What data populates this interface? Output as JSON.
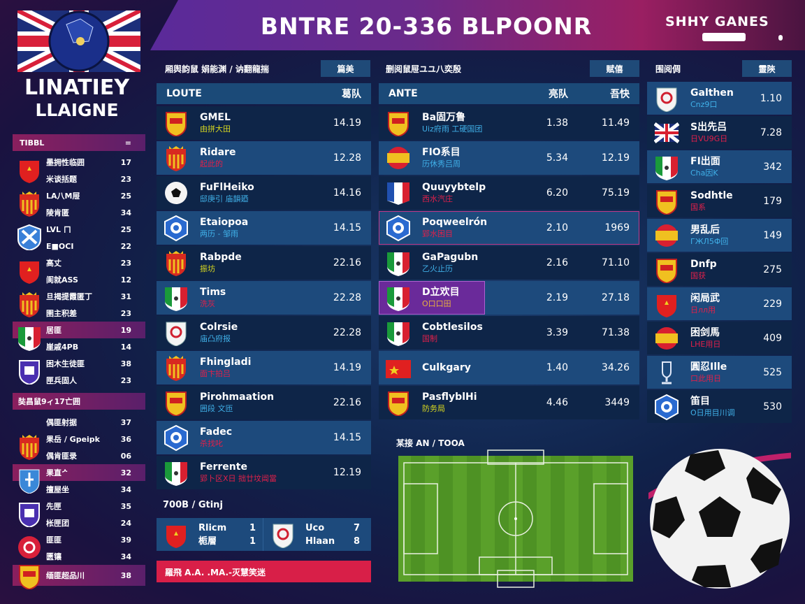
{
  "header": {
    "title": "BNTRE 20-336 BLPOONR",
    "brand": "SHHY  GANES"
  },
  "logo": {
    "line1": "LINATIEY",
    "line2": "LLAIGNE"
  },
  "colors": {
    "accent_magenta": "#9a1f62",
    "panel_blue": "#1d4a7c",
    "panel_dark": "#0e2548",
    "alert_red": "#d81f48",
    "pitch_green": "#5aa02a"
  },
  "sidebar": {
    "header": {
      "label": "TIBBL",
      "icon": "menu-icon"
    },
    "groups": [
      {
        "icon": "shield-red",
        "lines": [
          [
            "墨拥性临囲",
            "17"
          ],
          [
            "米谈括题",
            "23"
          ]
        ]
      },
      {
        "icon": "shield-ry",
        "lines": [
          [
            "LA八M屉",
            "25"
          ],
          [
            "陵肯匿",
            "34"
          ]
        ]
      },
      {
        "icon": "shield-bluex",
        "lines": [
          [
            "LVL ㄇ",
            "25"
          ],
          [
            "E■OCI",
            "22"
          ]
        ]
      },
      {
        "icon": "shield-red",
        "lines": [
          [
            "高丈",
            "23"
          ],
          [
            "阆就ASS",
            "12"
          ]
        ]
      },
      {
        "icon": "shield-ry",
        "lines": [
          [
            "旦揭提霞匿丁",
            "31"
          ],
          [
            "圉主积差",
            "23"
          ]
        ]
      },
      {
        "icon": "flag-it",
        "highlight": true,
        "lines": [
          [
            "居匪",
            "19"
          ],
          [
            "崖戚4PB",
            "14"
          ]
        ]
      },
      {
        "icon": "shield-purple",
        "lines": [
          [
            "困木生徒匪",
            "38"
          ],
          [
            "匣兵固人",
            "23"
          ]
        ]
      }
    ],
    "section": "奘昌鼠9ィ17亡囲",
    "groups2": [
      {
        "icon": "",
        "lines": [
          [
            "偶匪射据",
            "37"
          ]
        ]
      },
      {
        "icon": "shield-ry",
        "lines": [
          [
            "果岳 / Gpeipk",
            "36"
          ],
          [
            "偶肯匪录",
            "06"
          ]
        ]
      },
      {
        "icon": "shield-blue",
        "highlight": true,
        "lines": [
          [
            "果直ᄼ",
            "32"
          ],
          [
            "擅屋坐",
            "34"
          ]
        ]
      },
      {
        "icon": "shield-purple",
        "lines": [
          [
            "先匣",
            "35"
          ],
          [
            "枨匣团",
            "24"
          ]
        ]
      },
      {
        "icon": "circle-red",
        "lines": [
          [
            "匪匪",
            "39"
          ],
          [
            "匮镶",
            "34"
          ]
        ]
      }
    ],
    "footer": {
      "label": "缅匪超品川",
      "value": "38"
    }
  },
  "panel1": {
    "title": "厢舆韵鼠 娟能渊 / 讷翻龍揣",
    "button": "篇美",
    "col_name": "LOUTE",
    "col_value": "葛队",
    "rows": [
      {
        "name": "GMEL",
        "sub": "由拼大田",
        "sub_color": "#d8d820",
        "value": "14.19",
        "badge": "shield-yr"
      },
      {
        "name": "Ridare",
        "sub": "起此的",
        "sub_color": "#e0204a",
        "value": "12.28",
        "badge": "shield-ry"
      },
      {
        "name": "FuFlHeiko",
        "sub": "邸庚引 庙韻廼",
        "sub_color": "#40b0e8",
        "value": "14.16",
        "badge": "ball"
      },
      {
        "name": "Etaiopoa",
        "sub": "两历 - 邹雨",
        "sub_color": "#40b0e8",
        "value": "14.15",
        "badge": "circle-blue"
      },
      {
        "name": "Rabpde",
        "sub": "振坊",
        "sub_color": "#d8d820",
        "value": "22.16",
        "badge": "shield-ry"
      },
      {
        "name": "Tims",
        "sub": "洗灰",
        "sub_color": "#e0204a",
        "value": "22.28",
        "badge": "flag-it"
      },
      {
        "name": "Colrsie",
        "sub": "庙凸府报",
        "sub_color": "#40b0e8",
        "value": "22.28",
        "badge": "shield-white"
      },
      {
        "name": "Fhingladi",
        "sub": "面卞拍吕",
        "sub_color": "#e0204a",
        "value": "14.19",
        "badge": "shield-ry"
      },
      {
        "name": "Pirohmaation",
        "sub": "囲段 文匝",
        "sub_color": "#40b0e8",
        "value": "22.16",
        "badge": "shield-yr"
      },
      {
        "name": "Fadec",
        "sub": "杀找叱",
        "sub_color": "#e0204a",
        "value": "14.15",
        "badge": "circle-blue"
      },
      {
        "name": "Ferrente",
        "sub": "郢卜区X日 拙廿坟阊當",
        "sub_color": "#e0204a",
        "value": "12.19",
        "badge": "flag-it"
      }
    ]
  },
  "panel2": {
    "title": "删阅鼠屉ユユ八奕殷",
    "button": "赋僖",
    "col_name": "ANTE",
    "col_v1": "亮队",
    "col_v2": "吾快",
    "rows": [
      {
        "name": "Ba固万鲁",
        "sub": "Uiz府雨 工硬国团",
        "sub_color": "#40b0e8",
        "v1": "1.38",
        "v2": "11.49",
        "badge": "shield-yr"
      },
      {
        "name": "FIO系目",
        "sub": "历休秀吕周",
        "sub_color": "#40b0e8",
        "v1": "5.34",
        "v2": "12.19",
        "badge": "flag-es"
      },
      {
        "name": "Quuyybtelp",
        "sub": "西水汽庄",
        "sub_color": "#e0204a",
        "v1": "6.20",
        "v2": "75.19",
        "badge": "flag-fr"
      },
      {
        "name": "Poqweelrón",
        "sub": "郢水困目",
        "sub_color": "#e0204a",
        "v1": "2.10",
        "v2": "1969",
        "badge": "circle-blue",
        "outline": true
      },
      {
        "name": "GaPagubn",
        "sub": "乙火止历",
        "sub_color": "#40b0e8",
        "v1": "2.16",
        "v2": "71.10",
        "badge": "flag-it"
      },
      {
        "name": "D立欢目",
        "sub": "O口口田",
        "sub_color": "#e8b040",
        "v1": "2.19",
        "v2": "27.18",
        "badge": "flag-it",
        "selected": true
      },
      {
        "name": "Cobtlesilos",
        "sub": "国制",
        "sub_color": "#e0204a",
        "v1": "3.39",
        "v2": "71.38",
        "badge": "flag-it"
      },
      {
        "name": "Culkgary",
        "sub": "",
        "sub_color": "#e0204a",
        "v1": "1.40",
        "v2": "34.26",
        "badge": "flag-cn"
      },
      {
        "name": "PasflyblHi",
        "sub": "防务局",
        "sub_color": "#d8d820",
        "v1": "4.46",
        "v2": "3449",
        "badge": "shield-yr"
      }
    ]
  },
  "panel3": {
    "title": "围阅倜",
    "button": "靈陝",
    "rows": [
      {
        "name": "Galthen",
        "sub": "Cnz9口",
        "sub_color": "#40b0e8",
        "value": "1.10",
        "badge": "shield-white"
      },
      {
        "name": "S出先吕",
        "sub": "日VU9G日",
        "sub_color": "#e0204a",
        "value": "7.28",
        "badge": "flag-uk"
      },
      {
        "name": "FI出面",
        "sub": "Cha因K",
        "sub_color": "#40b0e8",
        "value": "342",
        "badge": "flag-it"
      },
      {
        "name": "Sodhtle",
        "sub": "国系",
        "sub_color": "#e0204a",
        "value": "179",
        "badge": "shield-yr"
      },
      {
        "name": "男乱后",
        "sub": "ГЖЛ5Ф回",
        "sub_color": "#40b0e8",
        "value": "149",
        "badge": "flag-es"
      },
      {
        "name": "Dnfp",
        "sub": "国获",
        "sub_color": "#e0204a",
        "value": "275",
        "badge": "shield-yr"
      },
      {
        "name": "闲局武",
        "sub": "日лл用",
        "sub_color": "#e0204a",
        "value": "229",
        "badge": "shield-red"
      },
      {
        "name": "困剑馬",
        "sub": "LHE用日",
        "sub_color": "#e0204a",
        "value": "409",
        "badge": "flag-es"
      },
      {
        "name": "圓忍Ille",
        "sub": "口此用日",
        "sub_color": "#e0204a",
        "value": "525",
        "badge": "trophy"
      },
      {
        "name": "笛目",
        "sub": "O日用目川调",
        "sub_color": "#40b0e8",
        "value": "530",
        "badge": "circle-blue"
      }
    ]
  },
  "match": {
    "title": "700B / Gtinj",
    "home": {
      "line1": "Rlicm",
      "score1": "1",
      "line2": "栀層",
      "score2": "1",
      "badge": "shield-red"
    },
    "away": {
      "line1": "Uco",
      "score1": "7",
      "line2": "Hlaan",
      "score2": "8",
      "badge": "shield-white"
    },
    "banner": "羅飛 A.A. .MA.-灭慧笑迷"
  },
  "pitch": {
    "title": "某接 AN / TOOA"
  }
}
